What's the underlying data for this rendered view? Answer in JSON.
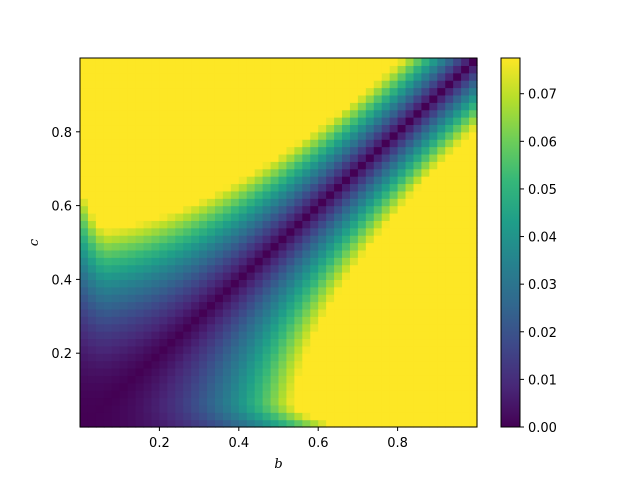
{
  "chart_data": {
    "type": "heatmap",
    "title": "",
    "xlabel": "b",
    "ylabel": "c",
    "xlim": [
      0.0,
      1.0
    ],
    "ylim": [
      0.0,
      1.0
    ],
    "x_ticks": [
      0.2,
      0.4,
      0.6,
      0.8
    ],
    "x_tick_labels": [
      "0.2",
      "0.4",
      "0.6",
      "0.8"
    ],
    "y_ticks": [
      0.2,
      0.4,
      0.6,
      0.8
    ],
    "y_tick_labels": [
      "0.2",
      "0.4",
      "0.6",
      "0.8"
    ],
    "grid_resolution": 50,
    "colormap": "viridis",
    "colorbar": {
      "min": 0.0,
      "max": 0.0775,
      "ticks": [
        0.0,
        0.01,
        0.02,
        0.03,
        0.04,
        0.05,
        0.06,
        0.07
      ],
      "tick_labels": [
        "0.00",
        "0.01",
        "0.02",
        "0.03",
        "0.04",
        "0.05",
        "0.06",
        "0.07"
      ]
    },
    "value_description": "near-zero along diagonal c=b and near b≈0.05 / c≈0.05; maxima ≈0.077 near (b≈0.5, c≈1.0) and (b≈1.0, c≈0.5)",
    "grid": false
  },
  "colors": {
    "viridis_stops": [
      "#440154",
      "#482878",
      "#3e4989",
      "#31688e",
      "#26828e",
      "#1f9e89",
      "#35b779",
      "#6ece58",
      "#b5de2b",
      "#fde725"
    ],
    "axis": "#000000",
    "background": "#ffffff"
  }
}
